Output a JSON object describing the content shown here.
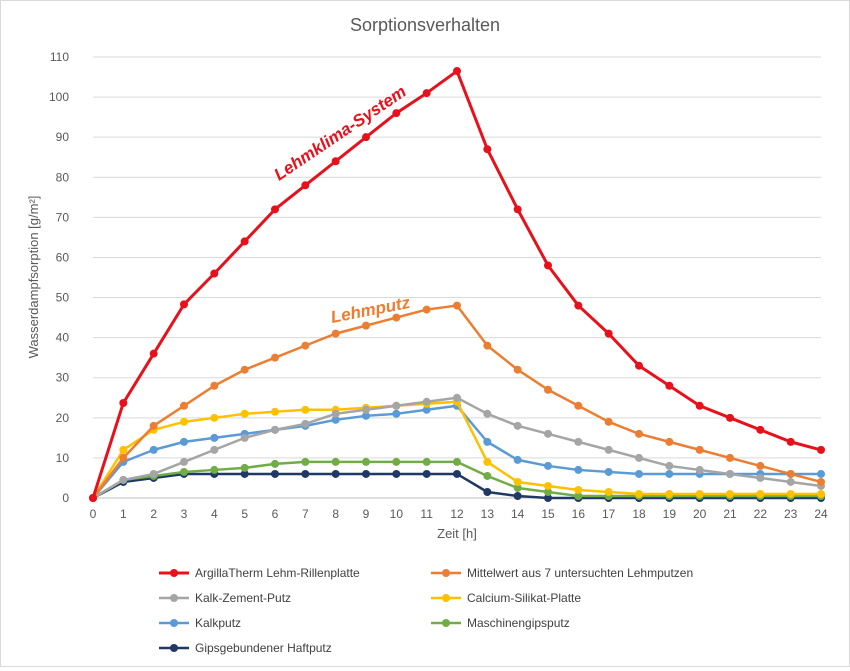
{
  "chart_data": {
    "type": "line",
    "title": "Sorptionsverhalten",
    "xlabel": "Zeit [h]",
    "ylabel": "Wasserdampfsorption [g/m²]",
    "xlim": [
      0,
      24
    ],
    "ylim": [
      0,
      110
    ],
    "yticks": [
      0,
      10,
      20,
      30,
      40,
      50,
      60,
      70,
      80,
      90,
      100,
      110
    ],
    "x": [
      0,
      1,
      2,
      3,
      4,
      5,
      6,
      7,
      8,
      9,
      10,
      11,
      12,
      13,
      14,
      15,
      16,
      17,
      18,
      19,
      20,
      21,
      22,
      23,
      24
    ],
    "grid": "horizontal",
    "legend_position": "bottom",
    "series": [
      {
        "name": "ArgillaTherm Lehm-Rillenplatte",
        "color": "#e8101a",
        "width": 3,
        "values": [
          0,
          23.7,
          36,
          48.3,
          56,
          64,
          72,
          78,
          84,
          90,
          96,
          101,
          106.5,
          87,
          72,
          58,
          48,
          41,
          33,
          28,
          23,
          20,
          17,
          14,
          12
        ]
      },
      {
        "name": "Mittelwert aus 7 untersuchten Lehmputzen",
        "color": "#ed7d31",
        "width": 2.5,
        "values": [
          0,
          10,
          18,
          23,
          28,
          32,
          35,
          38,
          41,
          43,
          45,
          47,
          48,
          38,
          32,
          27,
          23,
          19,
          16,
          14,
          12,
          10,
          8,
          6,
          4
        ]
      },
      {
        "name": "Kalk-Zement-Putz",
        "color": "#a5a5a5",
        "width": 2.5,
        "values": [
          0,
          4.5,
          6,
          9,
          12,
          15,
          17,
          18.5,
          21,
          22,
          23,
          24,
          25,
          21,
          18,
          16,
          14,
          12,
          10,
          8,
          7,
          6,
          5,
          4,
          3
        ]
      },
      {
        "name": "Calcium-Silikat-Platte",
        "color": "#ffc000",
        "width": 2.5,
        "values": [
          0,
          12,
          17,
          19,
          20,
          21,
          21.5,
          22,
          22,
          22.5,
          23,
          23.5,
          24,
          9,
          4,
          3,
          2,
          1.5,
          1,
          1,
          1,
          1,
          1,
          1,
          1
        ]
      },
      {
        "name": "Kalkputz",
        "color": "#5b9bd5",
        "width": 2.5,
        "values": [
          0,
          9,
          12,
          14,
          15,
          16,
          17,
          18,
          19.5,
          20.5,
          21,
          22,
          23,
          14,
          9.5,
          8,
          7,
          6.5,
          6,
          6,
          6,
          6,
          6,
          6,
          6
        ]
      },
      {
        "name": "Maschinengipsputz",
        "color": "#70ad47",
        "width": 2.5,
        "values": [
          0,
          4.5,
          5.5,
          6.5,
          7,
          7.5,
          8.5,
          9,
          9,
          9,
          9,
          9,
          9,
          5.5,
          2.5,
          1.5,
          0.5,
          0.5,
          0.5,
          0.5,
          0.5,
          0.5,
          0.5,
          0.5,
          0.5
        ]
      },
      {
        "name": "Gipsgebundener Haftputz",
        "color": "#1f3864",
        "width": 2.5,
        "values": [
          0,
          4,
          5,
          6,
          6,
          6,
          6,
          6,
          6,
          6,
          6,
          6,
          6,
          1.5,
          0.5,
          0,
          0,
          0,
          0,
          0,
          0,
          0,
          0,
          0,
          0
        ]
      }
    ],
    "annotations": [
      {
        "text": "Lehmklima-System",
        "color": "#e8101a"
      },
      {
        "text": "Lehmputz",
        "color": "#ed7d31"
      }
    ]
  }
}
